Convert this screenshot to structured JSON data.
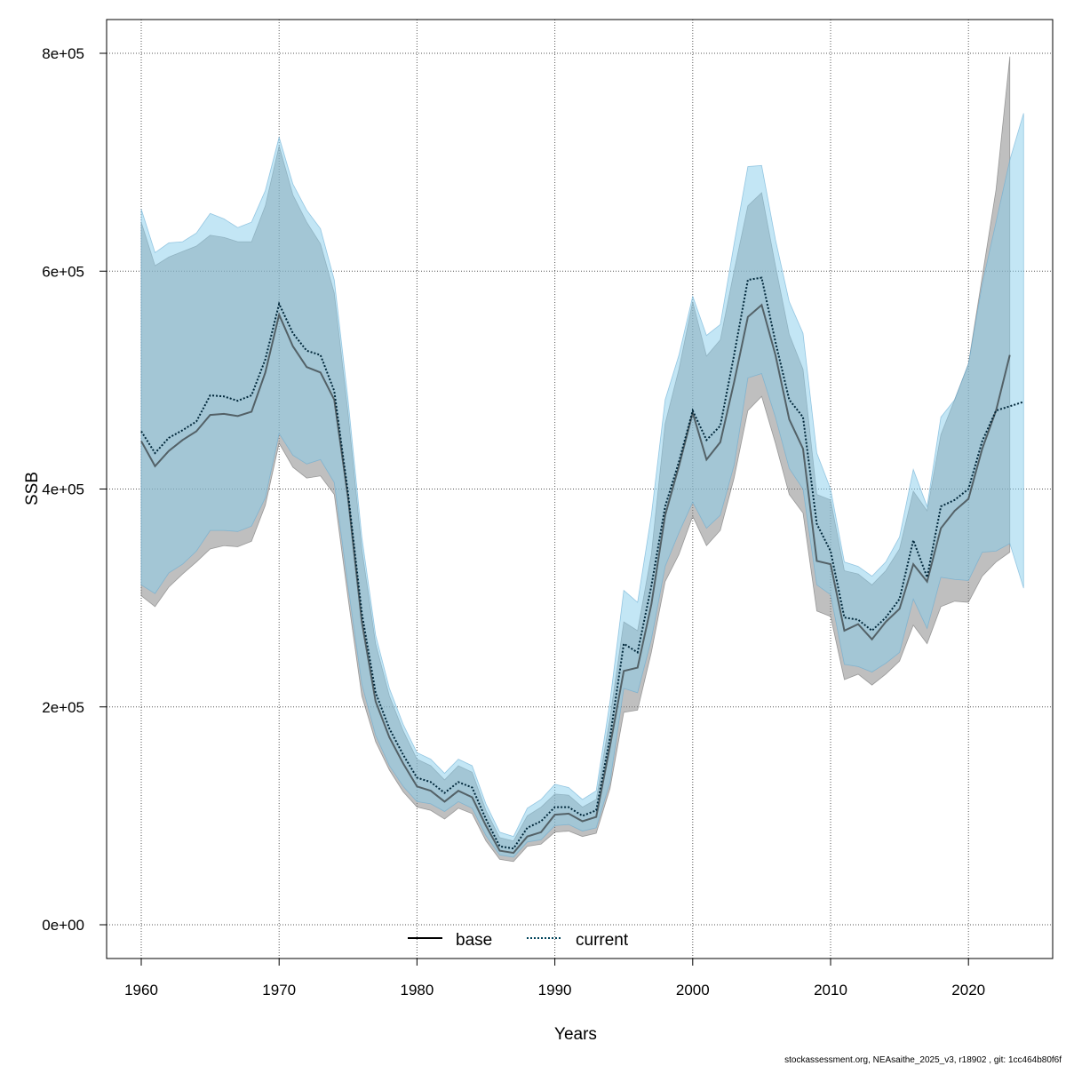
{
  "chart_data": {
    "type": "line",
    "xlabel": "Years",
    "ylabel": "SSB",
    "xlim": [
      1957.5,
      2025.7
    ],
    "ylim": [
      -30000,
      830000
    ],
    "grid": true,
    "x_ticks": [
      1960,
      1970,
      1980,
      1990,
      2000,
      2010,
      2020
    ],
    "x_tick_labels": [
      "1960",
      "1970",
      "1980",
      "1990",
      "2000",
      "2010",
      "2020"
    ],
    "y_ticks": [
      0,
      200000,
      400000,
      600000,
      800000
    ],
    "y_tick_labels": [
      "0e+00",
      "2e+05",
      "4e+05",
      "6e+05",
      "8e+05"
    ],
    "legend": {
      "placement": "bottom",
      "entries": [
        "base",
        "current"
      ]
    },
    "footer": "stockassessment.org, NEAsaithe_2025_v3, r18902 , git: 1cc464b80f6f",
    "colors": {
      "base_band": "#808080",
      "current_band": "#87ceeb",
      "base_line": "#000000",
      "current_line": "#00435a"
    },
    "series": [
      {
        "name": "base",
        "start_year": 1960,
        "values_1e5": [
          4.44,
          4.21,
          4.35,
          4.45,
          4.53,
          4.68,
          4.69,
          4.67,
          4.71,
          5.07,
          5.6,
          5.31,
          5.12,
          5.07,
          4.82,
          3.92,
          2.78,
          2.05,
          1.72,
          1.48,
          1.27,
          1.23,
          1.13,
          1.23,
          1.17,
          0.91,
          0.68,
          0.66,
          0.81,
          0.85,
          1.01,
          1.02,
          0.95,
          0.99,
          1.64,
          2.33,
          2.36,
          2.94,
          3.76,
          4.21,
          4.7,
          4.27,
          4.43,
          4.98,
          5.58,
          5.69,
          5.23,
          4.64,
          4.37,
          3.34,
          3.31,
          2.7,
          2.76,
          2.62,
          2.78,
          2.9,
          3.31,
          3.15,
          3.64,
          3.8,
          3.91,
          4.37,
          4.72,
          5.23
        ],
        "upper_1e5": [
          6.45,
          6.05,
          6.13,
          6.18,
          6.23,
          6.33,
          6.31,
          6.27,
          6.27,
          6.6,
          7.15,
          6.7,
          6.45,
          6.25,
          5.8,
          4.7,
          3.45,
          2.58,
          2.1,
          1.78,
          1.52,
          1.46,
          1.33,
          1.46,
          1.4,
          1.05,
          0.8,
          0.77,
          1.0,
          1.08,
          1.2,
          1.19,
          1.08,
          1.15,
          1.9,
          2.78,
          2.7,
          3.4,
          4.6,
          5.1,
          5.72,
          5.22,
          5.37,
          6.0,
          6.6,
          6.72,
          6.05,
          5.42,
          5.1,
          3.95,
          3.9,
          3.25,
          3.22,
          3.12,
          3.25,
          3.45,
          3.98,
          3.8,
          4.5,
          4.82,
          5.15,
          5.95,
          6.75,
          7.97
        ],
        "lower_1e5": [
          3.02,
          2.92,
          3.1,
          3.22,
          3.33,
          3.45,
          3.48,
          3.47,
          3.52,
          3.85,
          4.42,
          4.2,
          4.1,
          4.12,
          3.95,
          3.0,
          2.1,
          1.68,
          1.42,
          1.22,
          1.08,
          1.05,
          0.97,
          1.07,
          1.02,
          0.77,
          0.6,
          0.58,
          0.72,
          0.74,
          0.85,
          0.86,
          0.81,
          0.84,
          1.25,
          1.95,
          1.97,
          2.5,
          3.15,
          3.4,
          3.75,
          3.48,
          3.62,
          4.1,
          4.72,
          4.85,
          4.42,
          3.95,
          3.78,
          2.88,
          2.83,
          2.25,
          2.3,
          2.2,
          2.3,
          2.42,
          2.75,
          2.58,
          2.92,
          2.97,
          2.96,
          3.2,
          3.33,
          3.42
        ]
      },
      {
        "name": "current",
        "start_year": 1960,
        "values_1e5": [
          4.53,
          4.33,
          4.47,
          4.54,
          4.62,
          4.86,
          4.85,
          4.81,
          4.86,
          5.19,
          5.7,
          5.43,
          5.27,
          5.23,
          4.9,
          3.96,
          2.86,
          2.13,
          1.8,
          1.56,
          1.35,
          1.31,
          1.21,
          1.31,
          1.26,
          0.97,
          0.72,
          0.7,
          0.89,
          0.95,
          1.08,
          1.08,
          1.0,
          1.05,
          1.72,
          2.58,
          2.5,
          3.11,
          3.84,
          4.25,
          4.72,
          4.45,
          4.58,
          5.23,
          5.92,
          5.94,
          5.35,
          4.82,
          4.66,
          3.68,
          3.43,
          2.82,
          2.8,
          2.7,
          2.82,
          2.99,
          3.53,
          3.19,
          3.84,
          3.9,
          4.0,
          4.44,
          4.72,
          4.76,
          4.8
        ],
        "upper_1e5": [
          6.57,
          6.17,
          6.26,
          6.27,
          6.35,
          6.53,
          6.48,
          6.4,
          6.45,
          6.74,
          7.23,
          6.8,
          6.56,
          6.39,
          5.92,
          4.82,
          3.56,
          2.66,
          2.17,
          1.84,
          1.58,
          1.52,
          1.39,
          1.52,
          1.46,
          1.11,
          0.85,
          0.81,
          1.07,
          1.15,
          1.29,
          1.26,
          1.15,
          1.23,
          2.05,
          3.07,
          2.96,
          3.76,
          4.82,
          5.23,
          5.77,
          5.41,
          5.51,
          6.25,
          6.96,
          6.97,
          6.29,
          5.72,
          5.43,
          4.33,
          4.0,
          3.33,
          3.29,
          3.2,
          3.33,
          3.56,
          4.18,
          3.84,
          4.66,
          4.82,
          5.15,
          5.88,
          6.45,
          7.02,
          7.45
        ],
        "lower_1e5": [
          3.12,
          3.04,
          3.23,
          3.31,
          3.43,
          3.62,
          3.62,
          3.61,
          3.66,
          3.92,
          4.51,
          4.31,
          4.23,
          4.27,
          4.06,
          3.11,
          2.21,
          1.74,
          1.46,
          1.27,
          1.13,
          1.11,
          1.04,
          1.13,
          1.07,
          0.82,
          0.64,
          0.62,
          0.76,
          0.78,
          0.91,
          0.92,
          0.86,
          0.89,
          1.31,
          2.17,
          2.13,
          2.62,
          3.29,
          3.6,
          3.88,
          3.64,
          3.76,
          4.22,
          5.02,
          5.06,
          4.66,
          4.19,
          4.0,
          3.12,
          3.03,
          2.39,
          2.37,
          2.32,
          2.4,
          2.5,
          2.99,
          2.72,
          3.19,
          3.17,
          3.16,
          3.42,
          3.43,
          3.5,
          3.09
        ]
      }
    ]
  }
}
